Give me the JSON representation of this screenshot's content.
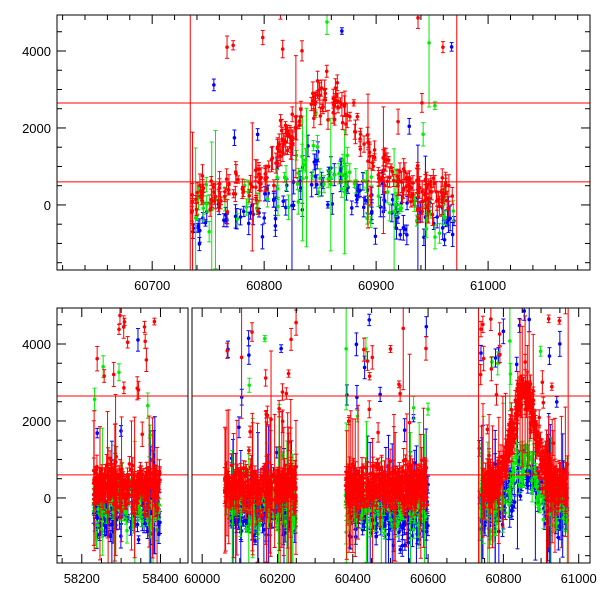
{
  "chart_data": [
    {
      "type": "scatter",
      "title": "",
      "xlabel": "",
      "ylabel": "",
      "xlim": [
        60615,
        61091
      ],
      "ylim": [
        -1690,
        4935
      ],
      "xticks": [
        60700,
        60800,
        60900,
        61000
      ],
      "yticks": [
        0,
        2000,
        4000
      ],
      "hlines": [
        2650,
        600
      ],
      "vlines": [
        60734,
        60972
      ],
      "windows": [
        [
          60735,
          60970
        ]
      ]
    },
    {
      "type": "scatter",
      "title": "",
      "xlabel": "",
      "ylabel": "",
      "broken_axis": true,
      "segments": [
        {
          "xlim": [
            58137,
            58470
          ],
          "xticks": [
            58200,
            58400
          ]
        },
        {
          "xlim": [
            59973,
            61030
          ],
          "xticks": [
            60000,
            60200,
            60400,
            60600,
            60800,
            61000
          ]
        }
      ],
      "ylim": [
        -1690,
        4935
      ],
      "yticks": [
        0,
        2000,
        4000
      ],
      "hlines": [
        2650,
        600
      ],
      "vlines": [
        60734,
        60972
      ],
      "windows": [
        [
          58230,
          58400
        ],
        [
          60060,
          60250
        ],
        [
          60380,
          60600
        ],
        [
          60735,
          60970
        ]
      ]
    }
  ],
  "series": [
    {
      "name": "red",
      "color": "#ff0000",
      "baseline": 300,
      "flare_peak": 2500,
      "flare_center": 60855,
      "flare_width": 30,
      "scatter": 450,
      "points_per_100d": 110
    },
    {
      "name": "green",
      "color": "#00ee00",
      "baseline": -150,
      "flare_peak": 1100,
      "flare_center": 60855,
      "flare_width": 30,
      "scatter": 550,
      "points_per_100d": 40
    },
    {
      "name": "blue",
      "color": "#0000ff",
      "baseline": -350,
      "flare_peak": 1200,
      "flare_center": 60855,
      "flare_width": 30,
      "scatter": 550,
      "points_per_100d": 55
    }
  ]
}
